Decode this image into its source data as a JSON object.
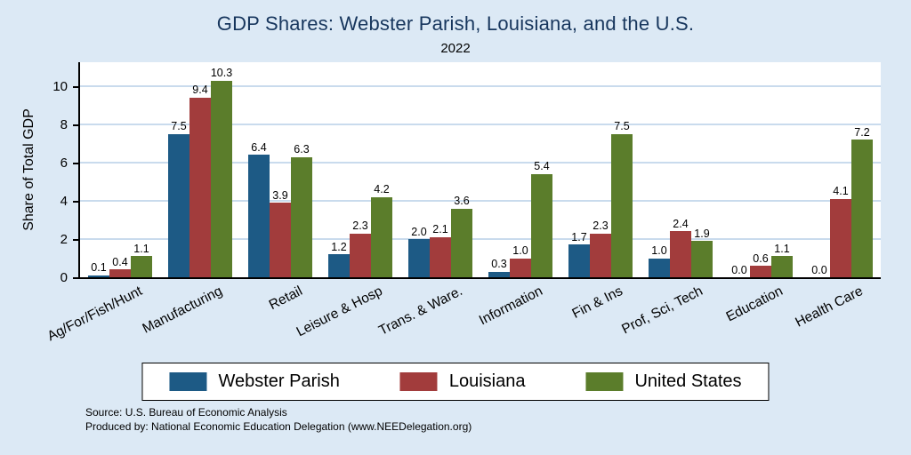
{
  "title": "GDP Shares: Webster Parish, Louisiana, and the U.S.",
  "subtitle": "2022",
  "ylabel": "Share of Total GDP",
  "source_line1": "Source: U.S. Bureau of Economic Analysis",
  "source_line2": "Produced by: National Economic Education Delegation (www.NEEDelegation.org)",
  "colors": {
    "background": "#dce9f5",
    "plot_background": "#ffffff",
    "title_text": "#17365d",
    "gridline": "#c9dbed",
    "axis": "#000000"
  },
  "chart_data": {
    "type": "bar",
    "title": "GDP Shares: Webster Parish, Louisiana, and the U.S.",
    "subtitle": "2022",
    "ylabel": "Share of Total GDP",
    "xlabel": "",
    "ylim": [
      0,
      10
    ],
    "yticks": [
      0,
      2,
      4,
      6,
      8,
      10
    ],
    "grid": true,
    "legend_position": "bottom",
    "value_label_decimals": 1,
    "categories": [
      "Ag/For/Fish/Hunt",
      "Manufacturing",
      "Retail",
      "Leisure & Hosp",
      "Trans. & Ware.",
      "Information",
      "Fin & Ins",
      "Prof, Sci, Tech",
      "Education",
      "Health Care"
    ],
    "series": [
      {
        "name": "Webster Parish",
        "color": "#1d5a85",
        "values": [
          0.1,
          7.5,
          6.4,
          1.2,
          2.0,
          0.3,
          1.7,
          1.0,
          0.0,
          0.0
        ]
      },
      {
        "name": "Louisiana",
        "color": "#a23c3c",
        "values": [
          0.4,
          9.4,
          3.9,
          2.3,
          2.1,
          1.0,
          2.3,
          2.4,
          0.6,
          4.1
        ]
      },
      {
        "name": "United States",
        "color": "#5b7d2b",
        "values": [
          1.1,
          10.3,
          6.3,
          4.2,
          3.6,
          5.4,
          7.5,
          1.9,
          1.1,
          7.2
        ]
      }
    ]
  }
}
